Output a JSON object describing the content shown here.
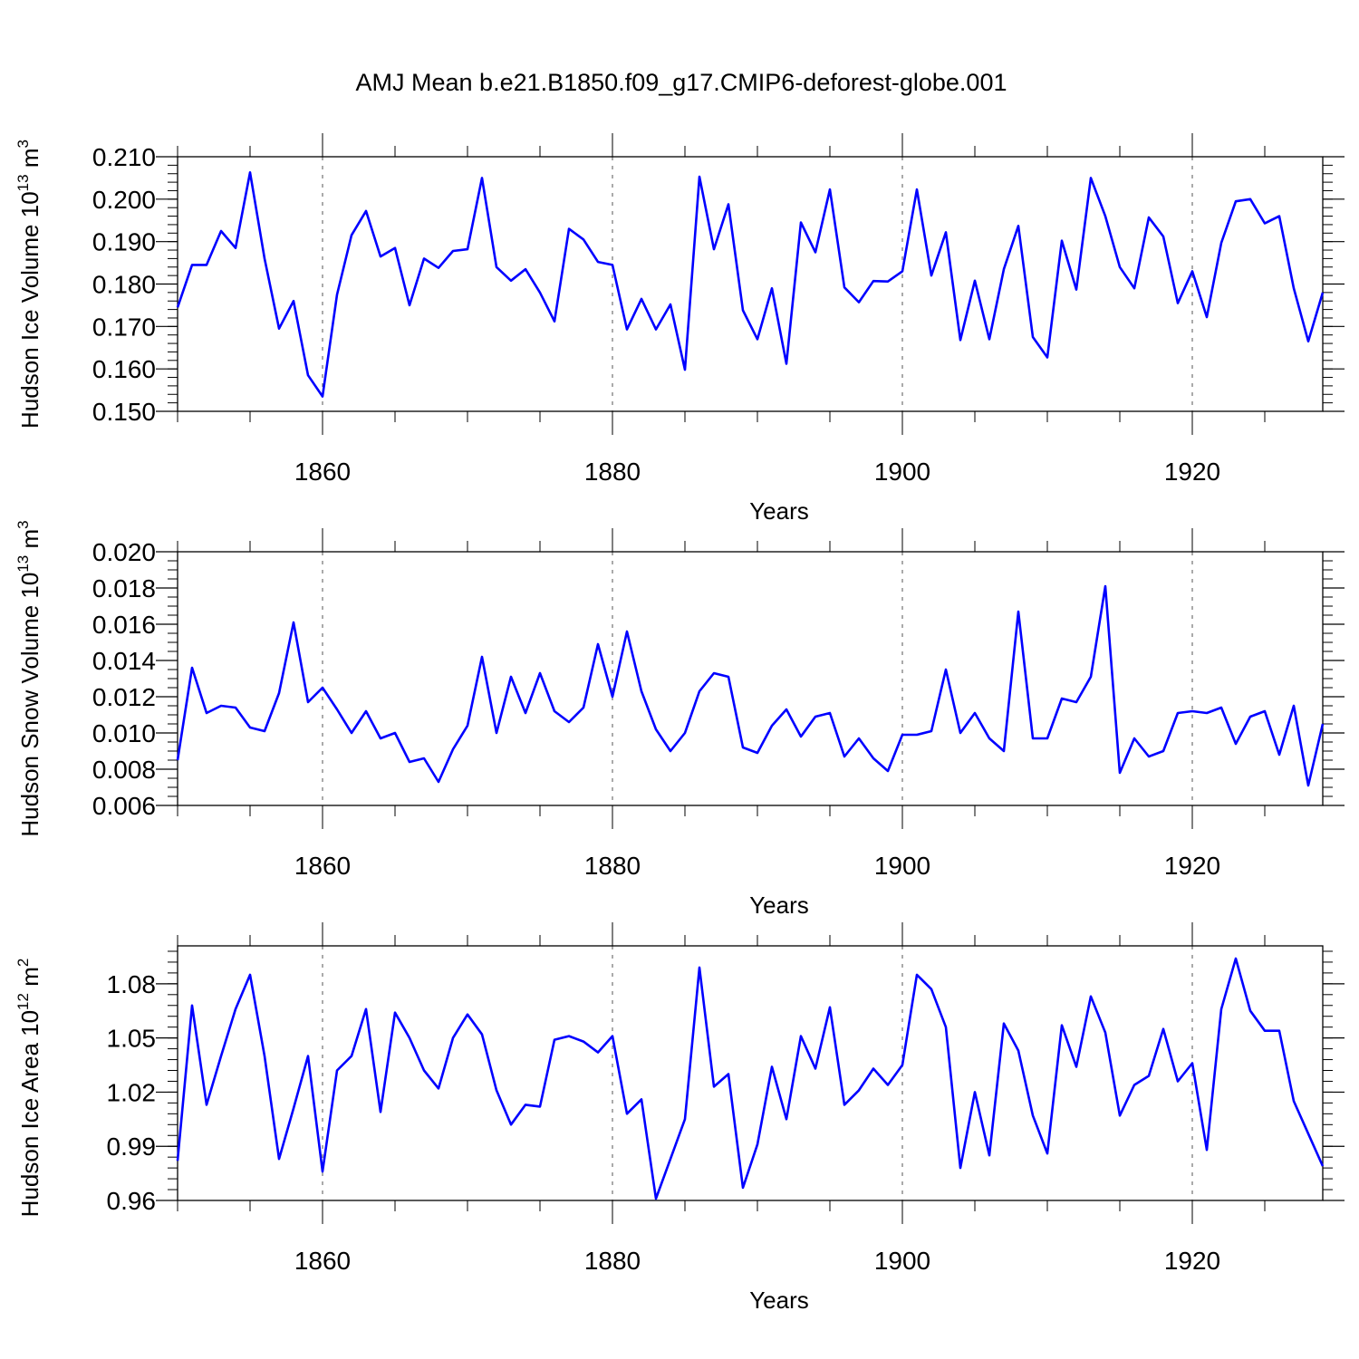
{
  "title": "AMJ Mean b.e21.B1850.f09_g17.CMIP6-deforest-globe.001",
  "colors": {
    "line": "#0000ff",
    "axis": "#000000",
    "grid": "#555555"
  },
  "chart_data": [
    {
      "type": "line",
      "title": "AMJ Mean b.e21.B1850.f09_g17.CMIP6-deforest-globe.001",
      "xlabel": "Years",
      "ylabel": {
        "prefix": "Hudson Ice Volume 10",
        "exp": "13",
        "unit": " m",
        "unit_exp": "3"
      },
      "xlim": [
        1850,
        1929
      ],
      "ylim": [
        0.15,
        0.21
      ],
      "x_ticks": [
        1860,
        1880,
        1900,
        1920
      ],
      "x_tick_labels": [
        "1860",
        "1880",
        "1900",
        "1920"
      ],
      "y_ticks": [
        0.15,
        0.16,
        0.17,
        0.18,
        0.19,
        0.2,
        0.21
      ],
      "y_tick_labels": [
        "0.150",
        "0.160",
        "0.170",
        "0.180",
        "0.190",
        "0.200",
        "0.210"
      ],
      "y_minor_step": 0.002,
      "x": [
        1850,
        1851,
        1852,
        1853,
        1854,
        1855,
        1856,
        1857,
        1858,
        1859,
        1860,
        1861,
        1862,
        1863,
        1864,
        1865,
        1866,
        1867,
        1868,
        1869,
        1870,
        1871,
        1872,
        1873,
        1874,
        1875,
        1876,
        1877,
        1878,
        1879,
        1880,
        1881,
        1882,
        1883,
        1884,
        1885,
        1886,
        1887,
        1888,
        1889,
        1890,
        1891,
        1892,
        1893,
        1894,
        1895,
        1896,
        1897,
        1898,
        1899,
        1900,
        1901,
        1902,
        1903,
        1904,
        1905,
        1906,
        1907,
        1908,
        1909,
        1910,
        1911,
        1912,
        1913,
        1914,
        1915,
        1916,
        1917,
        1918,
        1919,
        1920,
        1921,
        1922,
        1923,
        1924,
        1925,
        1926,
        1927,
        1928,
        1929
      ],
      "values": [
        0.1745,
        0.1845,
        0.1845,
        0.1925,
        0.1885,
        0.2063,
        0.186,
        0.1695,
        0.176,
        0.1585,
        0.1535,
        0.1775,
        0.1915,
        0.1972,
        0.1865,
        0.1885,
        0.175,
        0.186,
        0.1838,
        0.1878,
        0.1882,
        0.205,
        0.184,
        0.1808,
        0.1835,
        0.178,
        0.1712,
        0.193,
        0.1905,
        0.1852,
        0.1845,
        0.1693,
        0.1765,
        0.1693,
        0.1752,
        0.1598,
        0.2053,
        0.1882,
        0.1988,
        0.1738,
        0.167,
        0.179,
        0.1612,
        0.1945,
        0.1875,
        0.2023,
        0.1792,
        0.1757,
        0.1807,
        0.1806,
        0.183,
        0.2023,
        0.182,
        0.1922,
        0.1668,
        0.1808,
        0.167,
        0.1835,
        0.1937,
        0.1675,
        0.1627,
        0.1902,
        0.1787,
        0.205,
        0.196,
        0.184,
        0.179,
        0.1957,
        0.1912,
        0.1755,
        0.183,
        0.1722,
        0.1897,
        0.1995,
        0.2,
        0.1943,
        0.196,
        0.179,
        0.1665,
        0.178
      ]
    },
    {
      "type": "line",
      "xlabel": "Years",
      "ylabel": {
        "prefix": "Hudson Snow Volume 10",
        "exp": "13",
        "unit": " m",
        "unit_exp": "3"
      },
      "xlim": [
        1850,
        1929
      ],
      "ylim": [
        0.006,
        0.02
      ],
      "x_ticks": [
        1860,
        1880,
        1900,
        1920
      ],
      "x_tick_labels": [
        "1860",
        "1880",
        "1900",
        "1920"
      ],
      "y_ticks": [
        0.006,
        0.008,
        0.01,
        0.012,
        0.014,
        0.016,
        0.018,
        0.02
      ],
      "y_tick_labels": [
        "0.006",
        "0.008",
        "0.010",
        "0.012",
        "0.014",
        "0.016",
        "0.018",
        "0.020"
      ],
      "y_minor_step": 0.0005,
      "x": [
        1850,
        1851,
        1852,
        1853,
        1854,
        1855,
        1856,
        1857,
        1858,
        1859,
        1860,
        1861,
        1862,
        1863,
        1864,
        1865,
        1866,
        1867,
        1868,
        1869,
        1870,
        1871,
        1872,
        1873,
        1874,
        1875,
        1876,
        1877,
        1878,
        1879,
        1880,
        1881,
        1882,
        1883,
        1884,
        1885,
        1886,
        1887,
        1888,
        1889,
        1890,
        1891,
        1892,
        1893,
        1894,
        1895,
        1896,
        1897,
        1898,
        1899,
        1900,
        1901,
        1902,
        1903,
        1904,
        1905,
        1906,
        1907,
        1908,
        1909,
        1910,
        1911,
        1912,
        1913,
        1914,
        1915,
        1916,
        1917,
        1918,
        1919,
        1920,
        1921,
        1922,
        1923,
        1924,
        1925,
        1926,
        1927,
        1928,
        1929
      ],
      "values": [
        0.0085,
        0.0136,
        0.0111,
        0.0115,
        0.0114,
        0.0103,
        0.0101,
        0.0122,
        0.0161,
        0.0117,
        0.0125,
        0.0113,
        0.01,
        0.0112,
        0.0097,
        0.01,
        0.0084,
        0.0086,
        0.0073,
        0.0091,
        0.0104,
        0.0142,
        0.01,
        0.0131,
        0.0111,
        0.0133,
        0.0112,
        0.0106,
        0.0114,
        0.0149,
        0.012,
        0.0156,
        0.0123,
        0.0102,
        0.009,
        0.01,
        0.0123,
        0.0133,
        0.0131,
        0.0092,
        0.0089,
        0.0104,
        0.0113,
        0.0098,
        0.0109,
        0.0111,
        0.0087,
        0.0097,
        0.0086,
        0.0079,
        0.0099,
        0.0099,
        0.0101,
        0.0135,
        0.01,
        0.0111,
        0.0097,
        0.009,
        0.0167,
        0.0097,
        0.0097,
        0.0119,
        0.0117,
        0.0131,
        0.0181,
        0.0078,
        0.0097,
        0.0087,
        0.009,
        0.0111,
        0.0112,
        0.0111,
        0.0114,
        0.0094,
        0.0109,
        0.0112,
        0.0088,
        0.0115,
        0.0071,
        0.0105
      ]
    },
    {
      "type": "line",
      "xlabel": "Years",
      "ylabel": {
        "prefix": "Hudson Ice Area 10",
        "exp": "12",
        "unit": " m",
        "unit_exp": "2"
      },
      "xlim": [
        1850,
        1929
      ],
      "ylim": [
        0.96,
        1.101
      ],
      "x_ticks": [
        1860,
        1880,
        1900,
        1920
      ],
      "x_tick_labels": [
        "1860",
        "1880",
        "1900",
        "1920"
      ],
      "y_ticks": [
        0.96,
        0.99,
        1.02,
        1.05,
        1.08
      ],
      "y_tick_labels": [
        "0.96",
        "0.99",
        "1.02",
        "1.05",
        "1.08"
      ],
      "y_minor_step": 0.006,
      "x": [
        1850,
        1851,
        1852,
        1853,
        1854,
        1855,
        1856,
        1857,
        1858,
        1859,
        1860,
        1861,
        1862,
        1863,
        1864,
        1865,
        1866,
        1867,
        1868,
        1869,
        1870,
        1871,
        1872,
        1873,
        1874,
        1875,
        1876,
        1877,
        1878,
        1879,
        1880,
        1881,
        1882,
        1883,
        1884,
        1885,
        1886,
        1887,
        1888,
        1889,
        1890,
        1891,
        1892,
        1893,
        1894,
        1895,
        1896,
        1897,
        1898,
        1899,
        1900,
        1901,
        1902,
        1903,
        1904,
        1905,
        1906,
        1907,
        1908,
        1909,
        1910,
        1911,
        1912,
        1913,
        1914,
        1915,
        1916,
        1917,
        1918,
        1919,
        1920,
        1921,
        1922,
        1923,
        1924,
        1925,
        1926,
        1927,
        1928,
        1929
      ],
      "values": [
        0.982,
        1.068,
        1.013,
        1.04,
        1.066,
        1.085,
        1.04,
        0.983,
        1.011,
        1.04,
        0.976,
        1.032,
        1.04,
        1.066,
        1.009,
        1.064,
        1.05,
        1.032,
        1.022,
        1.05,
        1.063,
        1.052,
        1.021,
        1.002,
        1.013,
        1.012,
        1.049,
        1.051,
        1.048,
        1.042,
        1.051,
        1.008,
        1.016,
        0.961,
        0.983,
        1.005,
        1.089,
        1.023,
        1.03,
        0.967,
        0.991,
        1.034,
        1.005,
        1.051,
        1.033,
        1.067,
        1.013,
        1.021,
        1.033,
        1.024,
        1.035,
        1.085,
        1.077,
        1.056,
        0.978,
        1.02,
        0.985,
        1.058,
        1.043,
        1.007,
        0.986,
        1.057,
        1.034,
        1.073,
        1.053,
        1.007,
        1.024,
        1.029,
        1.055,
        1.026,
        1.036,
        0.988,
        1.066,
        1.094,
        1.065,
        1.054,
        1.054,
        1.015,
        0.997,
        0.979
      ]
    }
  ]
}
